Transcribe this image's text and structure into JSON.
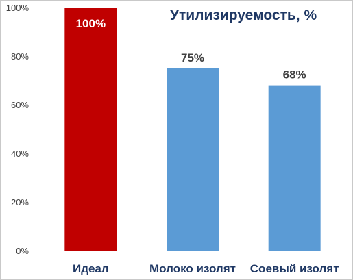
{
  "chart_data": {
    "type": "bar",
    "title": "Утилизируемость, %",
    "categories": [
      "Идеал",
      "Молоко изолят",
      "Соевый изолят"
    ],
    "values": [
      100,
      75,
      68
    ],
    "data_labels": [
      "100%",
      "75%",
      "68%"
    ],
    "bar_colors": [
      "#c00000",
      "#5b9bd5",
      "#5b9bd5"
    ],
    "data_label_colors": [
      "#ffffff",
      "#404040",
      "#404040"
    ],
    "ylim": [
      0,
      100
    ],
    "yticks": [
      0,
      20,
      40,
      60,
      80,
      100
    ],
    "ytick_labels": [
      "0%",
      "20%",
      "40%",
      "60%",
      "80%",
      "100%"
    ],
    "grid": false,
    "legend": "none",
    "xlabel": "",
    "ylabel": ""
  }
}
